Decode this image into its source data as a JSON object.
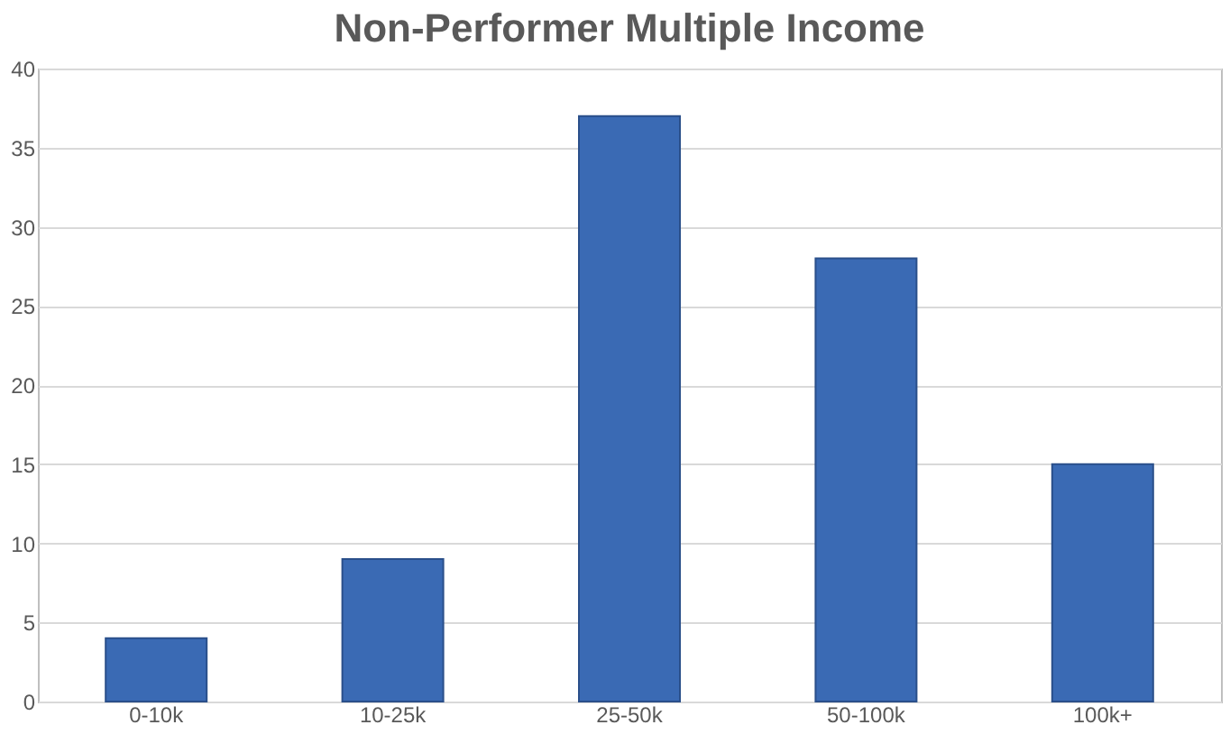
{
  "chart_data": {
    "type": "bar",
    "title": "Non-Performer Multiple Income",
    "categories": [
      "0-10k",
      "10-25k",
      "25-50k",
      "50-100k",
      "100k+"
    ],
    "values": [
      4,
      9,
      37,
      28,
      15
    ],
    "color": "#3a6ab4",
    "ylim": [
      0,
      40
    ],
    "yticks": [
      0,
      5,
      10,
      15,
      20,
      25,
      30,
      35,
      40
    ],
    "grid": "y"
  }
}
